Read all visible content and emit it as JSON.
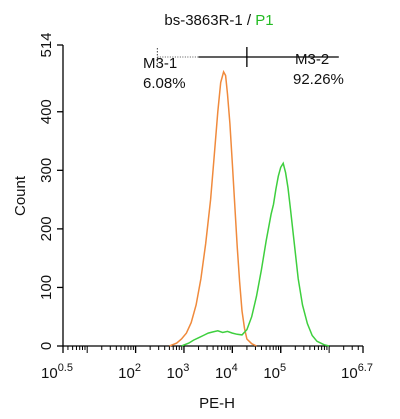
{
  "chart_data": {
    "type": "line",
    "title": {
      "prefix": "bs-3863R-1 / ",
      "suffix": "P1",
      "suffix_color": "#22bb22"
    },
    "xlabel": "PE-H",
    "ylabel": "Count",
    "x_scale": "log10",
    "xlim": [
      0.5,
      6.7
    ],
    "ylim": [
      0,
      514
    ],
    "x_ticks": [
      {
        "exp": 0.5,
        "base": "10",
        "sup": "0.5"
      },
      {
        "exp": 2,
        "base": "10",
        "sup": "2"
      },
      {
        "exp": 3,
        "base": "10",
        "sup": "3"
      },
      {
        "exp": 4,
        "base": "10",
        "sup": "4"
      },
      {
        "exp": 5,
        "base": "10",
        "sup": "5"
      },
      {
        "exp": 6.7,
        "base": "10",
        "sup": "6.7"
      }
    ],
    "y_ticks": [
      {
        "value": 0,
        "label": "0"
      },
      {
        "value": 100,
        "label": "100"
      },
      {
        "value": 200,
        "label": "200"
      },
      {
        "value": 300,
        "label": "300"
      },
      {
        "value": 400,
        "label": "400"
      },
      {
        "value": 514,
        "label": "514"
      }
    ],
    "series": [
      {
        "color": "#f08a3c",
        "points": [
          [
            2.7,
            0
          ],
          [
            2.85,
            5
          ],
          [
            2.95,
            12
          ],
          [
            3.05,
            22
          ],
          [
            3.15,
            40
          ],
          [
            3.25,
            70
          ],
          [
            3.35,
            115
          ],
          [
            3.45,
            175
          ],
          [
            3.55,
            250
          ],
          [
            3.62,
            320
          ],
          [
            3.7,
            400
          ],
          [
            3.76,
            450
          ],
          [
            3.82,
            468
          ],
          [
            3.86,
            462
          ],
          [
            3.9,
            430
          ],
          [
            3.95,
            380
          ],
          [
            4.0,
            310
          ],
          [
            4.05,
            240
          ],
          [
            4.1,
            170
          ],
          [
            4.15,
            110
          ],
          [
            4.2,
            60
          ],
          [
            4.25,
            30
          ],
          [
            4.3,
            12
          ],
          [
            4.4,
            4
          ],
          [
            4.5,
            0
          ]
        ]
      },
      {
        "color": "#3ecf3e",
        "points": [
          [
            2.95,
            0
          ],
          [
            3.1,
            5
          ],
          [
            3.2,
            10
          ],
          [
            3.3,
            14
          ],
          [
            3.4,
            18
          ],
          [
            3.5,
            22
          ],
          [
            3.6,
            24
          ],
          [
            3.7,
            26
          ],
          [
            3.8,
            23
          ],
          [
            3.9,
            25
          ],
          [
            4.0,
            22
          ],
          [
            4.1,
            20
          ],
          [
            4.2,
            19
          ],
          [
            4.3,
            28
          ],
          [
            4.4,
            50
          ],
          [
            4.5,
            85
          ],
          [
            4.6,
            130
          ],
          [
            4.7,
            180
          ],
          [
            4.8,
            225
          ],
          [
            4.85,
            242
          ],
          [
            4.9,
            268
          ],
          [
            4.95,
            290
          ],
          [
            5.0,
            305
          ],
          [
            5.05,
            312
          ],
          [
            5.1,
            296
          ],
          [
            5.15,
            270
          ],
          [
            5.2,
            235
          ],
          [
            5.28,
            175
          ],
          [
            5.36,
            115
          ],
          [
            5.45,
            70
          ],
          [
            5.55,
            38
          ],
          [
            5.65,
            18
          ],
          [
            5.75,
            8
          ],
          [
            5.9,
            2
          ],
          [
            6.0,
            0
          ]
        ]
      }
    ],
    "gates": [
      {
        "name": "M3-1",
        "percent": "6.08%",
        "x_start": 2.45,
        "x_end": 4.3
      },
      {
        "name": "M3-2",
        "percent": "92.26%",
        "x_start": 4.3,
        "x_end": 6.2
      }
    ]
  }
}
